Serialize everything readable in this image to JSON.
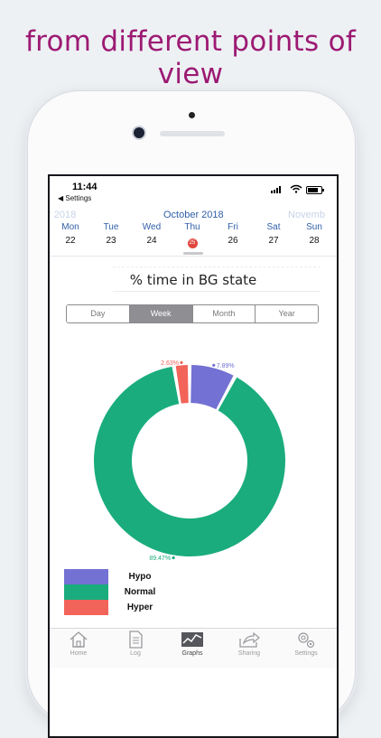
{
  "headline": "from different points of view",
  "status": {
    "time": "11:44",
    "back_label": "◀ Settings"
  },
  "calendar": {
    "prev_month": "r 2018",
    "month": "October 2018",
    "next_month": "Novemb",
    "days": [
      {
        "name": "Mon",
        "date": "22"
      },
      {
        "name": "Tue",
        "date": "23"
      },
      {
        "name": "Wed",
        "date": "24"
      },
      {
        "name": "Thu",
        "date": "25",
        "today": true
      },
      {
        "name": "Fri",
        "date": "26"
      },
      {
        "name": "Sat",
        "date": "27"
      },
      {
        "name": "Sun",
        "date": "28"
      }
    ]
  },
  "chart_title": "% time in BG state",
  "range_tabs": [
    {
      "label": "Day"
    },
    {
      "label": "Week",
      "selected": true
    },
    {
      "label": "Month"
    },
    {
      "label": "Year"
    }
  ],
  "chart_data": {
    "type": "pie",
    "donut": true,
    "title": "% time in BG state",
    "categories": [
      "Hypo",
      "Normal",
      "Hyper"
    ],
    "values": [
      7.89,
      89.47,
      2.63
    ],
    "value_labels": [
      "7.89%",
      "89.47%",
      "2.63%"
    ],
    "colors": [
      "#7371d3",
      "#1aac7d",
      "#f2635a"
    ],
    "legend_position": "bottom-left"
  },
  "legend": [
    {
      "label": "Hypo",
      "color": "#7371d3"
    },
    {
      "label": "Normal",
      "color": "#1aac7d"
    },
    {
      "label": "Hyper",
      "color": "#f2635a"
    }
  ],
  "tabbar": [
    {
      "label": "Home",
      "icon": "home-icon"
    },
    {
      "label": "Log",
      "icon": "log-icon"
    },
    {
      "label": "Graphs",
      "icon": "graphs-icon",
      "active": true
    },
    {
      "label": "Sharing",
      "icon": "share-icon"
    },
    {
      "label": "Settings",
      "icon": "settings-icon"
    }
  ]
}
